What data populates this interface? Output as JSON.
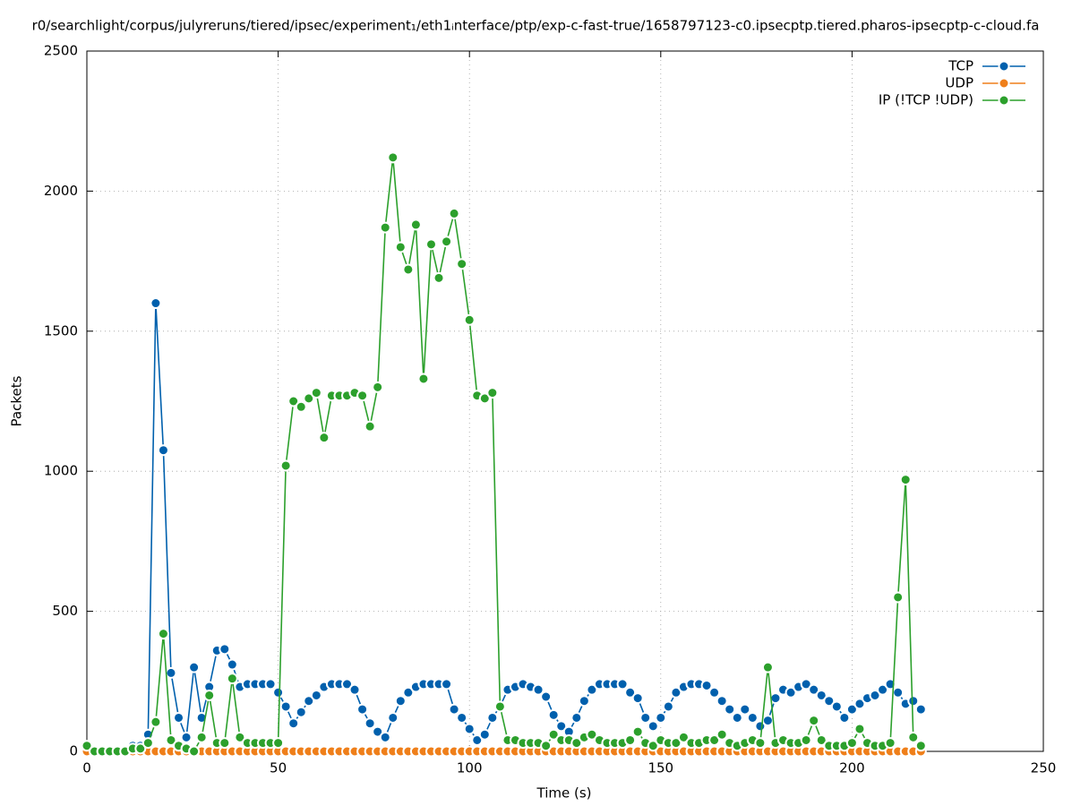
{
  "chart_data": {
    "type": "line",
    "title": "r0/searchlight/corpus/julyreruns/tiered/ipsec/experiment₁/eth1ᵢnterface/ptp/exp-c-fast-true/1658797123-c0.ipsecptp.tiered.pharos-ipsecptp-c-cloud.fa",
    "xlabel": "Time (s)",
    "ylabel": "Packets",
    "xlim": [
      0,
      250
    ],
    "xticks": [
      0,
      50,
      100,
      150,
      200,
      250
    ],
    "ylim": [
      0,
      2500
    ],
    "yticks": [
      0,
      500,
      1000,
      1500,
      2000,
      2500
    ],
    "grid": true,
    "legend": "top-right",
    "x": [
      0,
      2,
      4,
      6,
      8,
      10,
      12,
      14,
      16,
      18,
      20,
      22,
      24,
      26,
      28,
      30,
      32,
      34,
      36,
      38,
      40,
      42,
      44,
      46,
      48,
      50,
      52,
      54,
      56,
      58,
      60,
      62,
      64,
      66,
      68,
      70,
      72,
      74,
      76,
      78,
      80,
      82,
      84,
      86,
      88,
      90,
      92,
      94,
      96,
      98,
      100,
      102,
      104,
      106,
      108,
      110,
      112,
      114,
      116,
      118,
      120,
      122,
      124,
      126,
      128,
      130,
      132,
      134,
      136,
      138,
      140,
      142,
      144,
      146,
      148,
      150,
      152,
      154,
      156,
      158,
      160,
      162,
      164,
      166,
      168,
      170,
      172,
      174,
      176,
      178,
      180,
      182,
      184,
      186,
      188,
      190,
      192,
      194,
      196,
      198,
      200,
      202,
      204,
      206,
      208,
      210,
      212,
      214,
      216,
      218
    ],
    "series": [
      {
        "name": "TCP",
        "color": "#0060ad",
        "values": [
          0,
          0,
          0,
          0,
          0,
          0,
          20,
          20,
          60,
          1600,
          1075,
          280,
          120,
          50,
          300,
          120,
          230,
          360,
          365,
          310,
          230,
          240,
          240,
          240,
          240,
          210,
          160,
          100,
          140,
          180,
          200,
          230,
          240,
          240,
          240,
          220,
          150,
          100,
          70,
          50,
          120,
          180,
          210,
          230,
          240,
          240,
          240,
          240,
          150,
          120,
          80,
          40,
          60,
          120,
          160,
          220,
          230,
          240,
          230,
          220,
          195,
          130,
          90,
          70,
          120,
          180,
          220,
          240,
          240,
          240,
          240,
          210,
          190,
          120,
          90,
          120,
          160,
          210,
          230,
          240,
          240,
          235,
          210,
          180,
          150,
          120,
          150,
          120,
          90,
          110,
          190,
          220,
          210,
          230,
          240,
          220,
          200,
          180,
          160,
          120,
          150,
          170,
          190,
          200,
          220,
          240,
          210,
          170,
          180,
          150
        ]
      },
      {
        "name": "UDP",
        "color": "#ef7f1a",
        "values": [
          0,
          0,
          0,
          0,
          0,
          0,
          0,
          0,
          0,
          0,
          0,
          0,
          0,
          0,
          0,
          0,
          0,
          0,
          0,
          0,
          0,
          0,
          0,
          0,
          0,
          0,
          0,
          0,
          0,
          0,
          0,
          0,
          0,
          0,
          0,
          0,
          0,
          0,
          0,
          0,
          0,
          0,
          0,
          0,
          0,
          0,
          0,
          0,
          0,
          0,
          0,
          0,
          0,
          0,
          0,
          0,
          0,
          0,
          0,
          0,
          0,
          0,
          0,
          0,
          0,
          0,
          0,
          0,
          0,
          0,
          0,
          0,
          0,
          0,
          0,
          0,
          0,
          0,
          0,
          0,
          0,
          0,
          0,
          0,
          0,
          0,
          0,
          0,
          0,
          0,
          0,
          0,
          0,
          0,
          0,
          0,
          0,
          0,
          0,
          0,
          0,
          0,
          0,
          0,
          0,
          0,
          0,
          0,
          0,
          0
        ]
      },
      {
        "name": "IP (!TCP  !UDP)",
        "color": "#2ca02c",
        "values": [
          20,
          0,
          0,
          0,
          0,
          0,
          10,
          10,
          30,
          105,
          420,
          40,
          20,
          10,
          0,
          50,
          200,
          30,
          30,
          260,
          50,
          30,
          30,
          30,
          30,
          30,
          1020,
          1250,
          1230,
          1260,
          1280,
          1120,
          1270,
          1270,
          1270,
          1280,
          1270,
          1160,
          1300,
          1870,
          2120,
          1800,
          1720,
          1880,
          1330,
          1810,
          1690,
          1820,
          1920,
          1740,
          1540,
          1270,
          1260,
          1280,
          160,
          40,
          40,
          30,
          30,
          30,
          20,
          60,
          40,
          40,
          30,
          50,
          60,
          40,
          30,
          30,
          30,
          40,
          70,
          30,
          20,
          40,
          30,
          30,
          50,
          30,
          30,
          40,
          40,
          60,
          30,
          20,
          30,
          40,
          30,
          300,
          30,
          40,
          30,
          30,
          40,
          110,
          40,
          20,
          20,
          20,
          30,
          80,
          30,
          20,
          20,
          30,
          550,
          970,
          50,
          20
        ]
      }
    ]
  }
}
